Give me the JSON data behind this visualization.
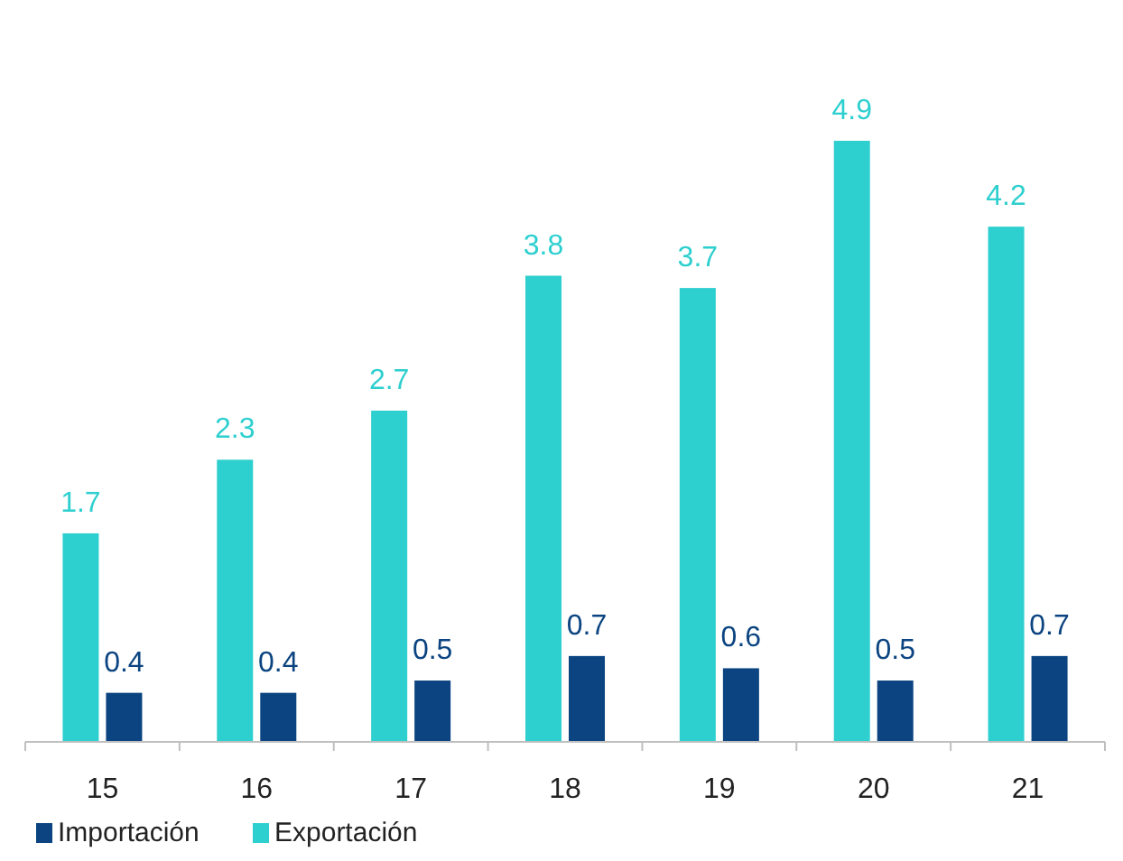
{
  "chart_data": {
    "type": "bar",
    "categories": [
      "15",
      "16",
      "17",
      "18",
      "19",
      "20",
      "21"
    ],
    "series": [
      {
        "name": "Importación",
        "color": "#0b4480",
        "values": [
          0.4,
          0.4,
          0.5,
          0.7,
          0.6,
          0.5,
          0.7
        ]
      },
      {
        "name": "Exportación",
        "color": "#2ecfcf",
        "values": [
          1.7,
          2.3,
          2.7,
          3.8,
          3.7,
          4.9,
          4.2
        ]
      }
    ],
    "data_labels": true,
    "legend": "bottom left"
  }
}
